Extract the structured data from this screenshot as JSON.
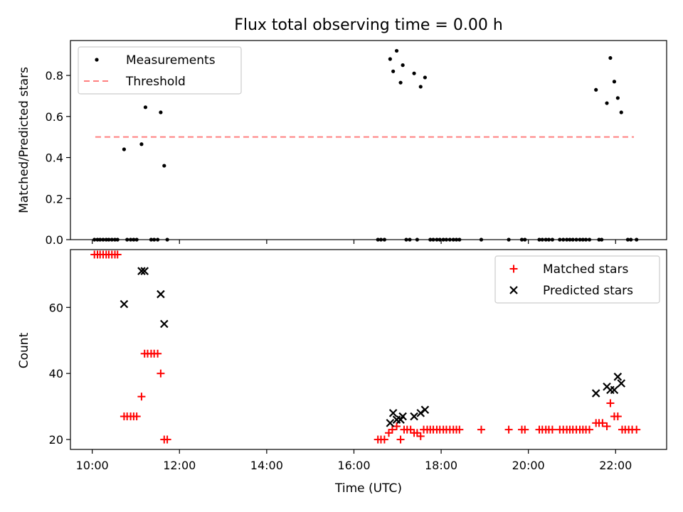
{
  "chart_data": [
    {
      "type": "scatter",
      "title": "Flux total observing time = 0.00 h",
      "xlabel": "",
      "ylabel": "Matched/Predicted stars",
      "xlim": [
        9.5,
        23.17
      ],
      "ylim": [
        0,
        0.97
      ],
      "yticks": [
        0.0,
        0.2,
        0.4,
        0.6,
        0.8
      ],
      "ytick_labels": [
        "0.0",
        "0.2",
        "0.4",
        "0.6",
        "0.8"
      ],
      "xticks": [
        10,
        12,
        14,
        16,
        18,
        20,
        22
      ],
      "legend": {
        "position": "top-left",
        "entries": [
          {
            "label": "Measurements",
            "marker": "dot",
            "color": "#000000"
          },
          {
            "label": "Threshold",
            "marker": "dashed-line",
            "color": "#ff7f7f"
          }
        ]
      },
      "threshold": {
        "value": 0.5,
        "x_start": 10.07,
        "x_end": 22.42,
        "color": "#ff7f7f"
      },
      "series": [
        {
          "name": "Measurements",
          "color": "#000000",
          "points": [
            [
              10.73,
              0.44
            ],
            [
              11.13,
              0.465
            ],
            [
              11.22,
              0.645
            ],
            [
              11.57,
              0.62
            ],
            [
              11.65,
              0.36
            ],
            [
              16.83,
              0.88
            ],
            [
              16.9,
              0.82
            ],
            [
              16.98,
              0.92
            ],
            [
              17.07,
              0.765
            ],
            [
              17.12,
              0.85
            ],
            [
              17.38,
              0.81
            ],
            [
              17.53,
              0.745
            ],
            [
              17.63,
              0.79
            ],
            [
              21.55,
              0.73
            ],
            [
              21.8,
              0.665
            ],
            [
              21.88,
              0.885
            ],
            [
              21.97,
              0.77
            ],
            [
              22.05,
              0.69
            ],
            [
              22.13,
              0.62
            ],
            [
              10.05,
              0
            ],
            [
              10.12,
              0
            ],
            [
              10.18,
              0
            ],
            [
              10.25,
              0
            ],
            [
              10.32,
              0
            ],
            [
              10.38,
              0
            ],
            [
              10.45,
              0
            ],
            [
              10.52,
              0
            ],
            [
              10.58,
              0
            ],
            [
              10.8,
              0
            ],
            [
              10.88,
              0
            ],
            [
              10.95,
              0
            ],
            [
              11.02,
              0
            ],
            [
              11.35,
              0
            ],
            [
              11.42,
              0
            ],
            [
              11.5,
              0
            ],
            [
              11.72,
              0
            ],
            [
              16.55,
              0
            ],
            [
              16.62,
              0
            ],
            [
              16.7,
              0
            ],
            [
              17.2,
              0
            ],
            [
              17.28,
              0
            ],
            [
              17.45,
              0
            ],
            [
              17.75,
              0
            ],
            [
              17.82,
              0
            ],
            [
              17.9,
              0
            ],
            [
              17.97,
              0
            ],
            [
              18.05,
              0
            ],
            [
              18.12,
              0
            ],
            [
              18.2,
              0
            ],
            [
              18.28,
              0
            ],
            [
              18.35,
              0
            ],
            [
              18.42,
              0
            ],
            [
              18.92,
              0
            ],
            [
              19.55,
              0
            ],
            [
              19.85,
              0
            ],
            [
              19.92,
              0
            ],
            [
              20.25,
              0
            ],
            [
              20.32,
              0
            ],
            [
              20.4,
              0
            ],
            [
              20.47,
              0
            ],
            [
              20.55,
              0
            ],
            [
              20.72,
              0
            ],
            [
              20.8,
              0
            ],
            [
              20.88,
              0
            ],
            [
              20.95,
              0
            ],
            [
              21.02,
              0
            ],
            [
              21.1,
              0
            ],
            [
              21.18,
              0
            ],
            [
              21.25,
              0
            ],
            [
              21.32,
              0
            ],
            [
              21.4,
              0
            ],
            [
              21.62,
              0
            ],
            [
              21.68,
              0
            ],
            [
              22.28,
              0
            ],
            [
              22.35,
              0
            ],
            [
              22.48,
              0
            ]
          ]
        }
      ]
    },
    {
      "type": "scatter",
      "title": "",
      "xlabel": "Time (UTC)",
      "ylabel": "Count",
      "xlim": [
        9.5,
        23.17
      ],
      "ylim": [
        17,
        77.5
      ],
      "yticks": [
        20,
        40,
        60
      ],
      "ytick_labels": [
        "20",
        "40",
        "60"
      ],
      "xticks": [
        10,
        12,
        14,
        16,
        18,
        20,
        22
      ],
      "xtick_labels": [
        "10:00",
        "12:00",
        "14:00",
        "16:00",
        "18:00",
        "20:00",
        "22:00"
      ],
      "legend": {
        "position": "top-right",
        "entries": [
          {
            "label": "Matched stars",
            "marker": "plus",
            "color": "#ff0000"
          },
          {
            "label": "Predicted stars",
            "marker": "x",
            "color": "#000000"
          }
        ]
      },
      "series": [
        {
          "name": "Matched stars",
          "color": "#ff0000",
          "marker": "plus",
          "points": [
            [
              10.05,
              76
            ],
            [
              10.12,
              76
            ],
            [
              10.18,
              76
            ],
            [
              10.25,
              76
            ],
            [
              10.32,
              76
            ],
            [
              10.38,
              76
            ],
            [
              10.45,
              76
            ],
            [
              10.52,
              76
            ],
            [
              10.58,
              76
            ],
            [
              10.73,
              27
            ],
            [
              10.8,
              27
            ],
            [
              10.88,
              27
            ],
            [
              10.95,
              27
            ],
            [
              11.02,
              27
            ],
            [
              11.13,
              33
            ],
            [
              11.2,
              46
            ],
            [
              11.27,
              46
            ],
            [
              11.35,
              46
            ],
            [
              11.42,
              46
            ],
            [
              11.5,
              46
            ],
            [
              11.57,
              40
            ],
            [
              11.65,
              20
            ],
            [
              11.72,
              20
            ],
            [
              16.55,
              20
            ],
            [
              16.62,
              20
            ],
            [
              16.7,
              20
            ],
            [
              16.8,
              22
            ],
            [
              16.88,
              23
            ],
            [
              16.98,
              24
            ],
            [
              17.07,
              20
            ],
            [
              17.15,
              23
            ],
            [
              17.22,
              23
            ],
            [
              17.3,
              23
            ],
            [
              17.38,
              22
            ],
            [
              17.45,
              22
            ],
            [
              17.53,
              21
            ],
            [
              17.6,
              23
            ],
            [
              17.68,
              23
            ],
            [
              17.75,
              23
            ],
            [
              17.82,
              23
            ],
            [
              17.9,
              23
            ],
            [
              17.97,
              23
            ],
            [
              18.05,
              23
            ],
            [
              18.12,
              23
            ],
            [
              18.2,
              23
            ],
            [
              18.28,
              23
            ],
            [
              18.35,
              23
            ],
            [
              18.42,
              23
            ],
            [
              18.92,
              23
            ],
            [
              19.55,
              23
            ],
            [
              19.85,
              23
            ],
            [
              19.92,
              23
            ],
            [
              20.25,
              23
            ],
            [
              20.32,
              23
            ],
            [
              20.4,
              23
            ],
            [
              20.47,
              23
            ],
            [
              20.55,
              23
            ],
            [
              20.72,
              23
            ],
            [
              20.8,
              23
            ],
            [
              20.88,
              23
            ],
            [
              20.95,
              23
            ],
            [
              21.02,
              23
            ],
            [
              21.1,
              23
            ],
            [
              21.18,
              23
            ],
            [
              21.25,
              23
            ],
            [
              21.32,
              23
            ],
            [
              21.4,
              23
            ],
            [
              21.55,
              25
            ],
            [
              21.62,
              25
            ],
            [
              21.7,
              25
            ],
            [
              21.8,
              24
            ],
            [
              21.88,
              31
            ],
            [
              21.97,
              27
            ],
            [
              22.05,
              27
            ],
            [
              22.15,
              23
            ],
            [
              22.22,
              23
            ],
            [
              22.3,
              23
            ],
            [
              22.38,
              23
            ],
            [
              22.48,
              23
            ]
          ]
        },
        {
          "name": "Predicted stars",
          "color": "#000000",
          "marker": "x",
          "points": [
            [
              10.73,
              61
            ],
            [
              11.13,
              71
            ],
            [
              11.2,
              71
            ],
            [
              11.57,
              64
            ],
            [
              11.65,
              55
            ],
            [
              16.83,
              25
            ],
            [
              16.9,
              28
            ],
            [
              16.98,
              26
            ],
            [
              17.07,
              26
            ],
            [
              17.12,
              27
            ],
            [
              17.38,
              27
            ],
            [
              17.53,
              28
            ],
            [
              17.63,
              29
            ],
            [
              21.55,
              34
            ],
            [
              21.8,
              36
            ],
            [
              21.88,
              35
            ],
            [
              21.97,
              35
            ],
            [
              22.05,
              39
            ],
            [
              22.13,
              37
            ]
          ]
        }
      ]
    }
  ]
}
